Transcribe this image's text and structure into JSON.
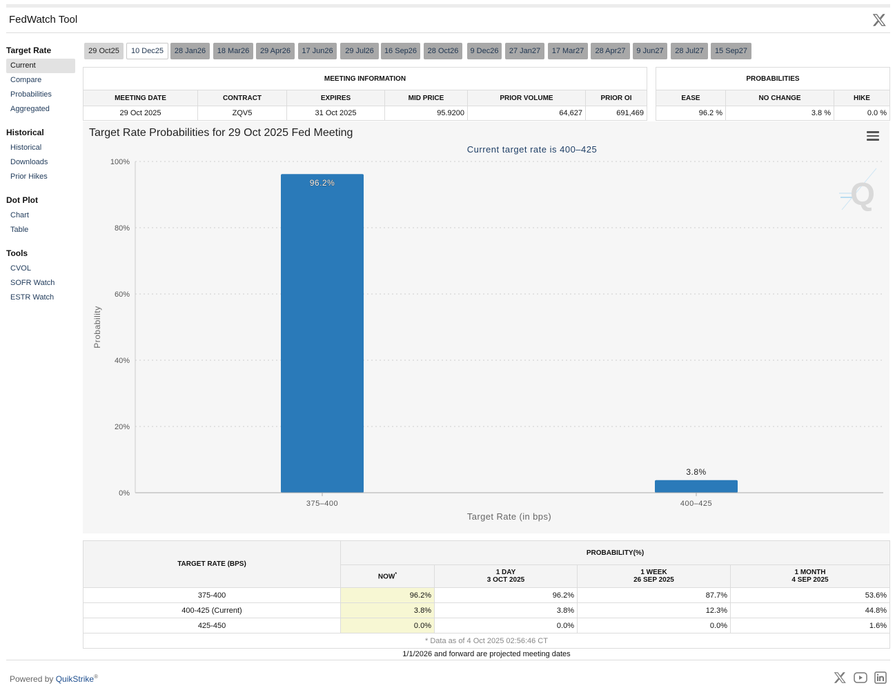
{
  "app": {
    "title": "FedWatch Tool"
  },
  "sidebar": {
    "sections": [
      {
        "title": "Target Rate",
        "items": [
          "Current",
          "Compare",
          "Probabilities",
          "Aggregated"
        ]
      },
      {
        "title": "Historical",
        "items": [
          "Historical",
          "Downloads",
          "Prior Hikes"
        ]
      },
      {
        "title": "Dot Plot",
        "items": [
          "Chart",
          "Table"
        ]
      },
      {
        "title": "Tools",
        "items": [
          "CVOL",
          "SOFR Watch",
          "ESTR Watch"
        ]
      }
    ]
  },
  "meeting_tabs": [
    "29 Oct25",
    "10 Dec25",
    "28 Jan26",
    "18 Mar26",
    "29 Apr26",
    "17 Jun26",
    "29 Jul26",
    "16 Sep26",
    "28 Oct26",
    "9 Dec26",
    "27 Jan27",
    "17 Mar27",
    "28 Apr27",
    "9 Jun27",
    "28 Jul27",
    "15 Sep27"
  ],
  "meeting_info": {
    "caption": "MEETING INFORMATION",
    "headers": [
      "MEETING DATE",
      "CONTRACT",
      "EXPIRES",
      "MID PRICE",
      "PRIOR VOLUME",
      "PRIOR OI"
    ],
    "row": [
      "29 Oct 2025",
      "ZQV5",
      "31 Oct 2025",
      "95.9200",
      "64,627",
      "691,469"
    ]
  },
  "probabilities": {
    "caption": "PROBABILITIES",
    "headers": [
      "EASE",
      "NO CHANGE",
      "HIKE"
    ],
    "row": [
      "96.2 %",
      "3.8 %",
      "0.0 %"
    ]
  },
  "chart": {
    "title": "Target Rate Probabilities for 29 Oct 2025 Fed Meeting",
    "subtitle": "Current target rate is 400–425",
    "watermark": "Q"
  },
  "chart_data": {
    "type": "bar",
    "title": "Target Rate Probabilities for 29 Oct 2025 Fed Meeting",
    "subtitle": "Current target rate is 400–425",
    "categories": [
      "375–400",
      "400–425"
    ],
    "values": [
      96.2,
      3.8
    ],
    "data_labels": [
      "96.2%",
      "3.8%"
    ],
    "xlabel": "Target Rate (in bps)",
    "ylabel": "Probability",
    "ylim": [
      0,
      100
    ],
    "yticks": [
      0,
      20,
      40,
      60,
      80,
      100
    ],
    "ytick_labels": [
      "0%",
      "20%",
      "40%",
      "60%",
      "80%",
      "100%"
    ],
    "color": "#2a7ab9",
    "grid": true
  },
  "prob_table": {
    "col_target": "TARGET RATE (BPS)",
    "col_prob": "PROBABILITY(%)",
    "sub_headers": [
      {
        "line1": "NOW",
        "mark": "*",
        "line2": ""
      },
      {
        "line1": "1 DAY",
        "line2": "3 OCT 2025"
      },
      {
        "line1": "1 WEEK",
        "line2": "26 SEP 2025"
      },
      {
        "line1": "1 MONTH",
        "line2": "4 SEP 2025"
      }
    ],
    "rows": [
      {
        "rate": "375-400",
        "now": "96.2%",
        "day": "96.2%",
        "week": "87.7%",
        "month": "53.6%"
      },
      {
        "rate": "400-425 (Current)",
        "now": "3.8%",
        "day": "3.8%",
        "week": "12.3%",
        "month": "44.8%"
      },
      {
        "rate": "425-450",
        "now": "0.0%",
        "day": "0.0%",
        "week": "0.0%",
        "month": "1.6%"
      }
    ],
    "note": "* Data as of 4 Oct 2025 02:56:46 CT"
  },
  "footnote": "1/1/2026 and forward are projected meeting dates",
  "footer": {
    "powered_by": "Powered by",
    "brand": "QuikStrike",
    "reg": "®"
  }
}
